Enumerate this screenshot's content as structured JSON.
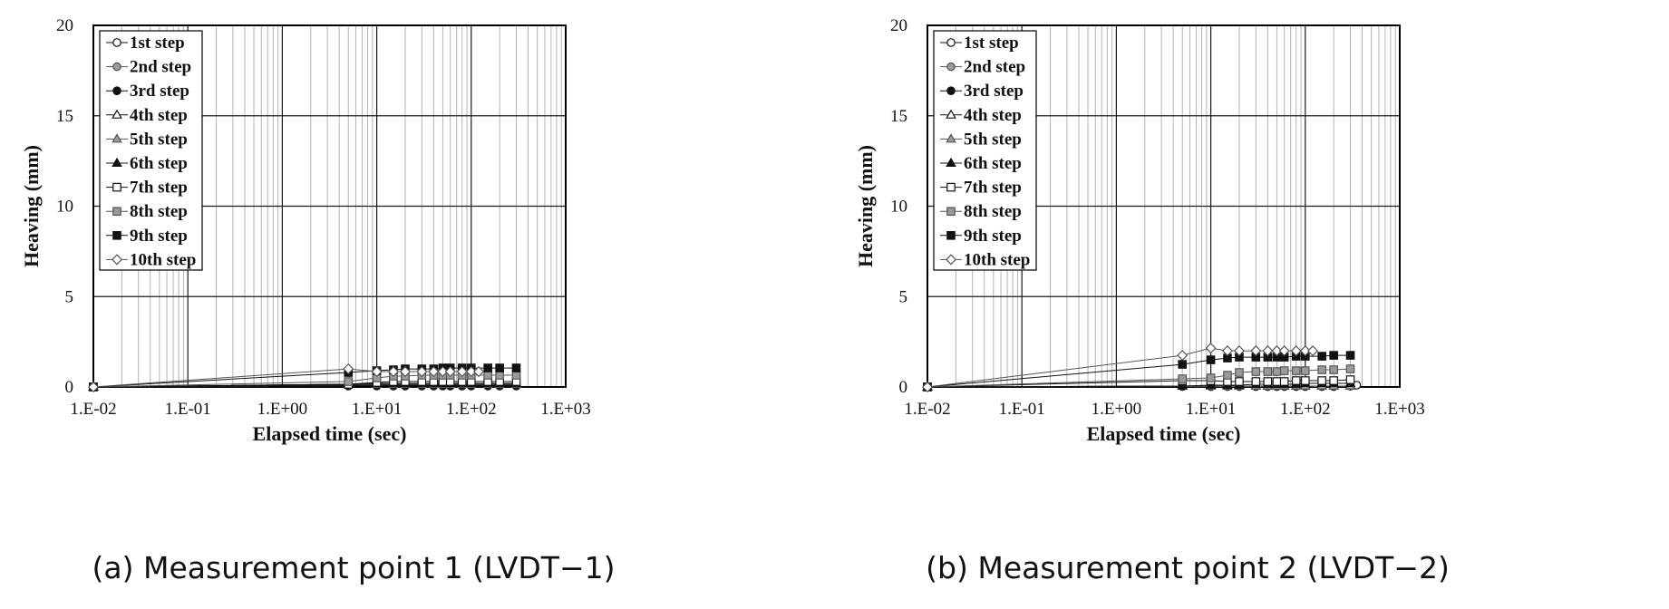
{
  "chart_data": [
    {
      "type": "scatter",
      "caption": "(a) Measurement point 1 (LVDT−1)",
      "xlabel": "Elapsed time (sec)",
      "ylabel": "Heaving (mm)",
      "x_scale": "log",
      "xlim": [
        0.01,
        1000
      ],
      "ylim": [
        0,
        20
      ],
      "x_ticks": [
        "1.E-02",
        "1.E-01",
        "1.E+00",
        "1.E+01",
        "1.E+02",
        "1.E+03"
      ],
      "y_ticks": [
        "0",
        "5",
        "10",
        "15",
        "20"
      ],
      "grid": true,
      "legend_position": "top-left",
      "series": [
        {
          "name": "1st step",
          "color": "#111111",
          "fill": "#ffffff",
          "marker": "circle",
          "x": [
            0.01,
            5,
            10,
            15,
            20,
            30,
            40,
            50,
            60,
            80,
            100,
            150,
            200,
            300
          ],
          "y": [
            0,
            0.05,
            0.05,
            0.05,
            0.05,
            0.05,
            0.05,
            0.05,
            0.05,
            0.05,
            0.05,
            0.05,
            0.05,
            0.05
          ]
        },
        {
          "name": "2nd step",
          "color": "#555555",
          "fill": "#9a9a9a",
          "marker": "circle",
          "x": [
            0.01,
            5,
            10,
            15,
            20,
            30,
            40,
            50,
            60,
            80,
            100,
            150,
            200,
            300
          ],
          "y": [
            0,
            0.1,
            0.1,
            0.1,
            0.1,
            0.1,
            0.1,
            0.1,
            0.1,
            0.1,
            0.1,
            0.1,
            0.1,
            0.1
          ]
        },
        {
          "name": "3rd step",
          "color": "#111111",
          "fill": "#111111",
          "marker": "circle",
          "x": [
            0.01,
            5,
            10,
            15,
            20,
            30,
            40,
            50,
            60,
            80,
            100,
            150,
            200,
            300
          ],
          "y": [
            0,
            0.1,
            0.1,
            0.1,
            0.1,
            0.1,
            0.1,
            0.1,
            0.1,
            0.1,
            0.1,
            0.1,
            0.1,
            0.1
          ]
        },
        {
          "name": "4th step",
          "color": "#111111",
          "fill": "#ffffff",
          "marker": "triangle",
          "x": [
            0.01,
            5,
            10,
            15,
            20,
            30,
            40,
            50,
            60,
            80,
            100,
            150,
            200,
            300
          ],
          "y": [
            0,
            0.15,
            0.15,
            0.15,
            0.15,
            0.15,
            0.15,
            0.15,
            0.15,
            0.15,
            0.15,
            0.15,
            0.15,
            0.15
          ]
        },
        {
          "name": "5th step",
          "color": "#555555",
          "fill": "#9a9a9a",
          "marker": "triangle",
          "x": [
            0.01,
            5,
            10,
            15,
            20,
            30,
            40,
            50,
            60,
            80,
            100,
            150,
            200,
            300
          ],
          "y": [
            0,
            0.15,
            0.15,
            0.15,
            0.15,
            0.15,
            0.15,
            0.15,
            0.15,
            0.15,
            0.15,
            0.15,
            0.15,
            0.15
          ]
        },
        {
          "name": "6th step",
          "color": "#111111",
          "fill": "#111111",
          "marker": "triangle",
          "x": [
            0.01,
            5,
            10,
            15,
            20,
            30,
            40,
            50,
            60,
            80,
            100,
            150,
            200,
            300
          ],
          "y": [
            0,
            0.15,
            0.2,
            0.2,
            0.2,
            0.2,
            0.2,
            0.2,
            0.2,
            0.2,
            0.2,
            0.2,
            0.2,
            0.2
          ]
        },
        {
          "name": "7th step",
          "color": "#111111",
          "fill": "#ffffff",
          "marker": "square",
          "x": [
            0.01,
            5,
            10,
            15,
            20,
            30,
            40,
            50,
            60,
            80,
            100,
            150,
            200,
            300
          ],
          "y": [
            0,
            0.15,
            0.25,
            0.3,
            0.3,
            0.3,
            0.3,
            0.3,
            0.3,
            0.3,
            0.3,
            0.3,
            0.3,
            0.3
          ]
        },
        {
          "name": "8th step",
          "color": "#555555",
          "fill": "#9a9a9a",
          "marker": "square",
          "x": [
            0.01,
            5,
            10,
            15,
            20,
            30,
            40,
            50,
            60,
            80,
            100,
            150,
            200,
            300
          ],
          "y": [
            0,
            0.3,
            0.5,
            0.6,
            0.6,
            0.65,
            0.65,
            0.65,
            0.65,
            0.65,
            0.65,
            0.65,
            0.65,
            0.65
          ]
        },
        {
          "name": "9th step",
          "color": "#111111",
          "fill": "#111111",
          "marker": "square",
          "x": [
            0.01,
            5,
            10,
            15,
            20,
            30,
            40,
            50,
            60,
            80,
            100,
            150,
            200,
            300
          ],
          "y": [
            0,
            0.8,
            0.9,
            0.95,
            1.0,
            1.0,
            1.0,
            1.05,
            1.05,
            1.05,
            1.05,
            1.05,
            1.05,
            1.05
          ]
        },
        {
          "name": "10th step",
          "color": "#555555",
          "fill": "#ffffff",
          "marker": "diamond",
          "x": [
            0.01,
            5,
            10,
            15,
            20,
            30,
            40,
            50,
            60,
            80,
            100,
            120
          ],
          "y": [
            0,
            1.0,
            0.85,
            0.85,
            0.85,
            0.85,
            0.85,
            0.85,
            0.85,
            0.85,
            0.85,
            0.85
          ]
        }
      ]
    },
    {
      "type": "scatter",
      "caption": "(b) Measurement point 2 (LVDT−2)",
      "xlabel": "Elapsed time (sec)",
      "ylabel": "Heaving (mm)",
      "x_scale": "log",
      "xlim": [
        0.01,
        1000
      ],
      "ylim": [
        0,
        20
      ],
      "x_ticks": [
        "1.E-02",
        "1.E-01",
        "1.E+00",
        "1.E+01",
        "1.E+02",
        "1.E+03"
      ],
      "y_ticks": [
        "0",
        "5",
        "10",
        "15",
        "20"
      ],
      "grid": true,
      "legend_position": "top-left",
      "series": [
        {
          "name": "1st step",
          "color": "#111111",
          "fill": "#ffffff",
          "marker": "circle",
          "x": [
            0.01,
            5,
            10,
            15,
            20,
            30,
            40,
            50,
            60,
            80,
            100,
            150,
            200,
            300,
            350
          ],
          "y": [
            0,
            0.02,
            0.02,
            0.02,
            0.02,
            0.02,
            0.02,
            0.02,
            0.02,
            0.02,
            0.02,
            0.02,
            0.02,
            0.05,
            0.1
          ]
        },
        {
          "name": "2nd step",
          "color": "#555555",
          "fill": "#9a9a9a",
          "marker": "circle",
          "x": [
            0.01,
            5,
            10,
            15,
            20,
            30,
            40,
            50,
            60,
            80,
            100,
            150,
            200,
            300
          ],
          "y": [
            0,
            0.03,
            0.03,
            0.03,
            0.03,
            0.03,
            0.03,
            0.03,
            0.03,
            0.03,
            0.03,
            0.03,
            0.03,
            0.05
          ]
        },
        {
          "name": "3rd step",
          "color": "#111111",
          "fill": "#111111",
          "marker": "circle",
          "x": [
            0.01,
            5,
            10,
            15,
            20,
            30,
            40,
            50,
            60,
            80,
            100,
            150,
            200,
            300
          ],
          "y": [
            0,
            0.05,
            0.05,
            0.05,
            0.05,
            0.05,
            0.05,
            0.05,
            0.05,
            0.05,
            0.05,
            0.05,
            0.05,
            0.05
          ]
        },
        {
          "name": "4th step",
          "color": "#111111",
          "fill": "#ffffff",
          "marker": "triangle",
          "x": [
            0.01,
            5,
            10,
            15,
            20,
            30,
            40,
            50,
            60,
            80,
            100,
            150,
            200,
            300
          ],
          "y": [
            0,
            0.05,
            0.05,
            0.05,
            0.05,
            0.05,
            0.05,
            0.05,
            0.05,
            0.05,
            0.05,
            0.05,
            0.05,
            0.05
          ]
        },
        {
          "name": "5th step",
          "color": "#555555",
          "fill": "#9a9a9a",
          "marker": "triangle",
          "x": [
            0.01,
            5,
            10,
            15,
            20,
            30,
            40,
            50,
            60,
            80,
            100,
            150,
            200,
            300
          ],
          "y": [
            0,
            0.05,
            0.05,
            0.05,
            0.05,
            0.05,
            0.05,
            0.05,
            0.05,
            0.05,
            0.05,
            0.05,
            0.05,
            0.05
          ]
        },
        {
          "name": "6th step",
          "color": "#111111",
          "fill": "#111111",
          "marker": "triangle",
          "x": [
            0.01,
            5,
            10,
            15,
            20,
            30,
            40,
            50,
            60,
            80,
            100,
            150,
            200,
            300
          ],
          "y": [
            0,
            0.05,
            0.1,
            0.1,
            0.1,
            0.15,
            0.15,
            0.15,
            0.15,
            0.15,
            0.2,
            0.2,
            0.2,
            0.2
          ]
        },
        {
          "name": "7th step",
          "color": "#111111",
          "fill": "#ffffff",
          "marker": "square",
          "x": [
            0.01,
            5,
            10,
            15,
            20,
            30,
            40,
            50,
            60,
            80,
            100,
            150,
            200,
            300
          ],
          "y": [
            0,
            0.35,
            0.35,
            0.3,
            0.3,
            0.3,
            0.3,
            0.3,
            0.3,
            0.35,
            0.35,
            0.35,
            0.35,
            0.4
          ]
        },
        {
          "name": "8th step",
          "color": "#555555",
          "fill": "#9a9a9a",
          "marker": "square",
          "x": [
            0.01,
            5,
            10,
            15,
            20,
            30,
            40,
            50,
            60,
            80,
            100,
            150,
            200,
            300
          ],
          "y": [
            0,
            0.45,
            0.5,
            0.65,
            0.8,
            0.85,
            0.85,
            0.85,
            0.9,
            0.9,
            0.9,
            0.95,
            0.95,
            1.0
          ]
        },
        {
          "name": "9th step",
          "color": "#111111",
          "fill": "#111111",
          "marker": "square",
          "x": [
            0.01,
            5,
            10,
            15,
            20,
            30,
            40,
            50,
            60,
            80,
            100,
            150,
            200,
            300
          ],
          "y": [
            0,
            1.25,
            1.5,
            1.6,
            1.65,
            1.65,
            1.65,
            1.65,
            1.65,
            1.7,
            1.7,
            1.7,
            1.75,
            1.75
          ]
        },
        {
          "name": "10th step",
          "color": "#555555",
          "fill": "#ffffff",
          "marker": "diamond",
          "x": [
            0.01,
            5,
            10,
            15,
            20,
            30,
            40,
            50,
            60,
            80,
            100,
            120
          ],
          "y": [
            0,
            1.75,
            2.15,
            2.0,
            2.0,
            2.0,
            2.0,
            2.0,
            2.0,
            2.0,
            2.0,
            2.0
          ]
        }
      ]
    }
  ]
}
